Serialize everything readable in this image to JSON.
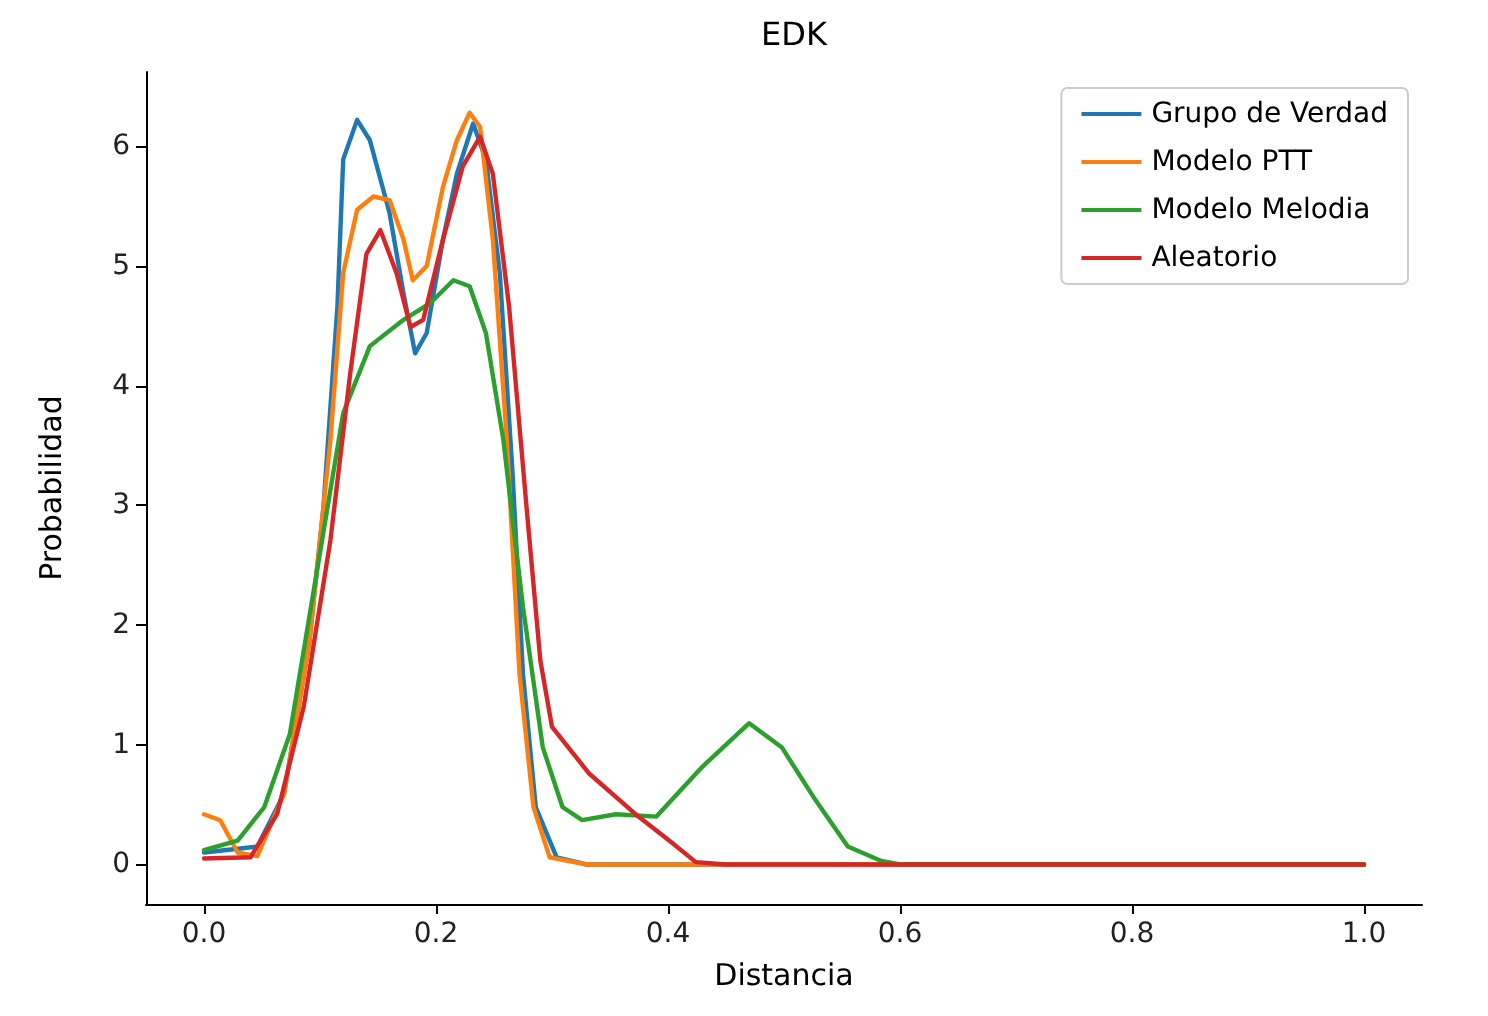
{
  "chart_data": {
    "type": "line",
    "title": "EDK",
    "xlabel": "Distancia",
    "ylabel": "Probabilidad",
    "xlim": [
      -0.05,
      1.05
    ],
    "ylim": [
      -0.33,
      6.62
    ],
    "xticks": [
      {
        "value": 0,
        "label": "0.0"
      },
      {
        "value": 0.2,
        "label": "0.2"
      },
      {
        "value": 0.4,
        "label": "0.4"
      },
      {
        "value": 0.6,
        "label": "0.6"
      },
      {
        "value": 0.8,
        "label": "0.8"
      },
      {
        "value": 1,
        "label": "1.0"
      }
    ],
    "yticks": [
      0,
      1,
      2,
      3,
      4,
      5,
      6
    ],
    "grid": false,
    "legend": "top right",
    "marker": "none",
    "line_style": "solid",
    "series": [
      {
        "name": "Grupo de Verdad",
        "color": "#1f77b4",
        "x": [
          0,
          0.046,
          0.069,
          0.091,
          0.103,
          0.115,
          0.12,
          0.132,
          0.143,
          0.16,
          0.172,
          0.182,
          0.192,
          0.206,
          0.218,
          0.232,
          0.243,
          0.255,
          0.266,
          0.275,
          0.286,
          0.304,
          0.33,
          1
        ],
        "values": [
          0.1,
          0.15,
          0.59,
          1.87,
          2.99,
          4.66,
          5.89,
          6.22,
          6.05,
          5.44,
          4.77,
          4.27,
          4.44,
          5.22,
          5.77,
          6.19,
          5.89,
          4.94,
          3.27,
          1.59,
          0.48,
          0.06,
          0,
          0
        ]
      },
      {
        "name": "Modelo PTT",
        "color": "#ff7f0e",
        "x": [
          0,
          0.014,
          0.029,
          0.046,
          0.069,
          0.091,
          0.109,
          0.12,
          0.132,
          0.146,
          0.16,
          0.172,
          0.18,
          0.192,
          0.206,
          0.218,
          0.229,
          0.238,
          0.249,
          0.261,
          0.272,
          0.284,
          0.298,
          0.33,
          1
        ],
        "values": [
          0.42,
          0.37,
          0.1,
          0.07,
          0.59,
          1.87,
          3.55,
          4.94,
          5.47,
          5.58,
          5.55,
          5.22,
          4.88,
          5.0,
          5.66,
          6.05,
          6.28,
          6.16,
          5.22,
          3.55,
          1.59,
          0.48,
          0.06,
          0,
          0
        ]
      },
      {
        "name": "Modelo Melodia",
        "color": "#2ca02c",
        "x": [
          0,
          0.029,
          0.052,
          0.074,
          0.097,
          0.12,
          0.143,
          0.172,
          0.195,
          0.215,
          0.229,
          0.243,
          0.258,
          0.275,
          0.292,
          0.309,
          0.326,
          0.355,
          0.39,
          0.43,
          0.47,
          0.498,
          0.527,
          0.555,
          0.584,
          0.6,
          1
        ],
        "values": [
          0.12,
          0.2,
          0.48,
          1.09,
          2.43,
          3.77,
          4.33,
          4.55,
          4.69,
          4.88,
          4.83,
          4.44,
          3.55,
          2.15,
          0.98,
          0.48,
          0.37,
          0.42,
          0.4,
          0.82,
          1.18,
          0.98,
          0.54,
          0.15,
          0.03,
          0,
          0
        ]
      },
      {
        "name": "Aleatorio",
        "color": "#d62728",
        "x": [
          0,
          0.04,
          0.063,
          0.086,
          0.109,
          0.126,
          0.14,
          0.152,
          0.166,
          0.178,
          0.189,
          0.206,
          0.223,
          0.238,
          0.249,
          0.263,
          0.278,
          0.29,
          0.3,
          0.332,
          0.372,
          0.401,
          0.424,
          0.45,
          1
        ],
        "values": [
          0.05,
          0.06,
          0.42,
          1.32,
          2.71,
          4.1,
          5.1,
          5.3,
          4.94,
          4.49,
          4.55,
          5.22,
          5.83,
          6.08,
          5.77,
          4.66,
          2.99,
          1.7,
          1.15,
          0.76,
          0.42,
          0.2,
          0.02,
          0,
          0
        ]
      }
    ]
  }
}
